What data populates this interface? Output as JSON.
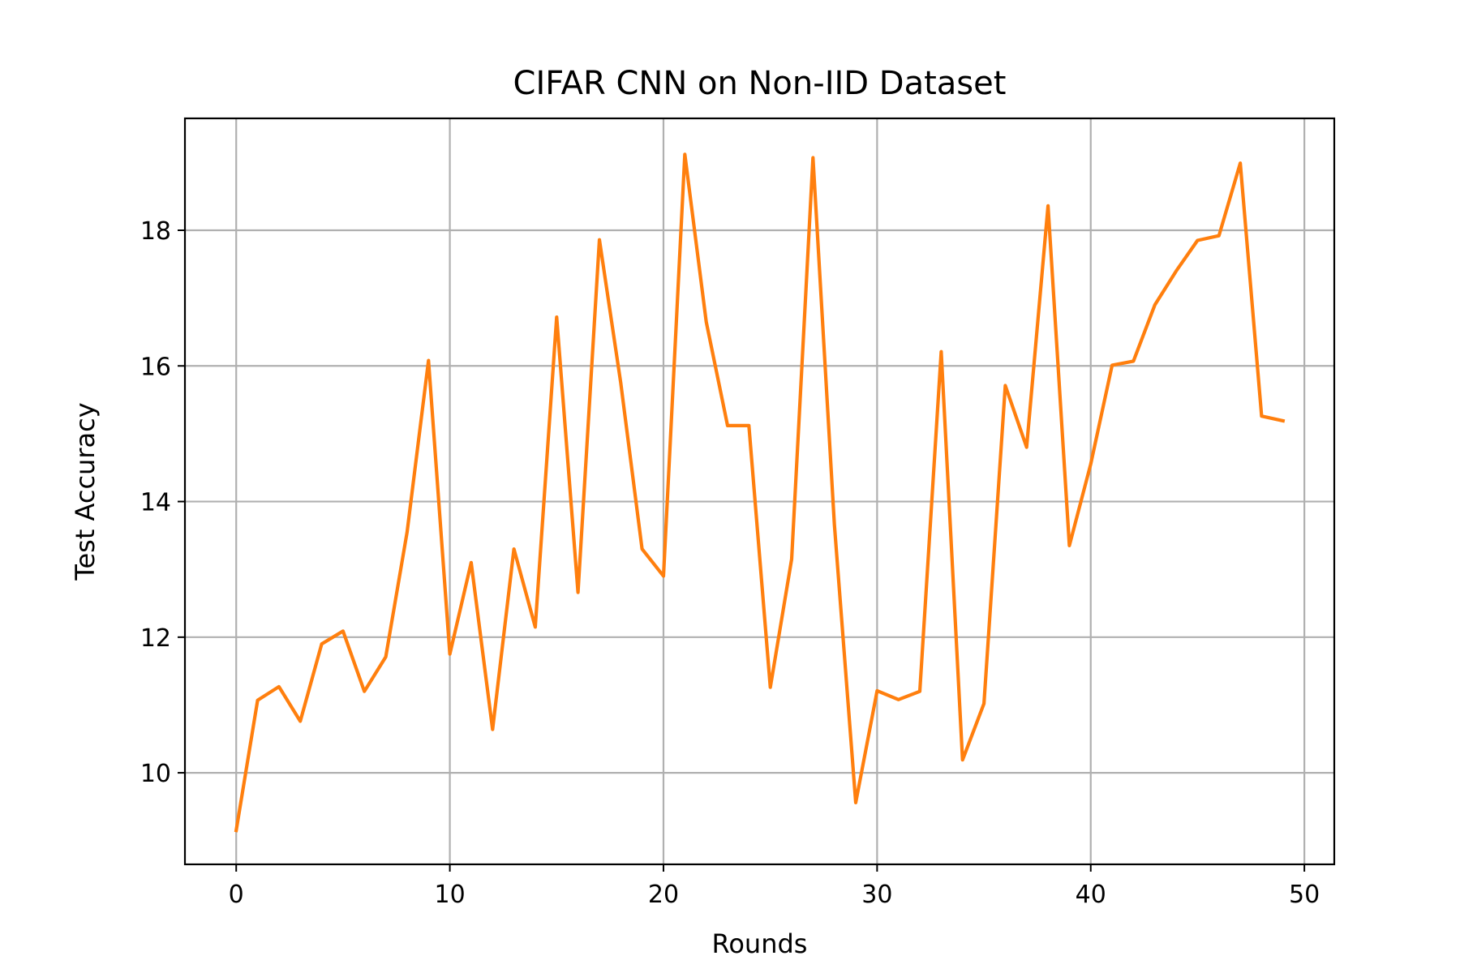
{
  "chart_data": {
    "type": "line",
    "title": "CIFAR CNN on Non-IID Dataset",
    "xlabel": "Rounds",
    "ylabel": "Test Accuracy",
    "xlim": [
      -2.4,
      51.4
    ],
    "ylim": [
      8.65,
      19.65
    ],
    "x_ticks": [
      0,
      10,
      20,
      30,
      40,
      50
    ],
    "y_ticks": [
      10,
      12,
      14,
      16,
      18
    ],
    "grid": true,
    "legend": "none",
    "colors": {
      "line": "#ff7f0e",
      "grid": "#b0b0b0",
      "frame": "#000000"
    },
    "series": [
      {
        "x": [
          0,
          1,
          2,
          3,
          4,
          5,
          6,
          7,
          8,
          9,
          10,
          11,
          12,
          13,
          14,
          15,
          16,
          17,
          18,
          19,
          20,
          21,
          22,
          23,
          24,
          25,
          26,
          27,
          28,
          29,
          30,
          31,
          32,
          33,
          34,
          35,
          36,
          37,
          38,
          39,
          40,
          41,
          42,
          43,
          44,
          45,
          46,
          47,
          48,
          49
        ],
        "values": [
          9.15,
          11.07,
          11.27,
          10.76,
          11.9,
          12.09,
          11.2,
          11.71,
          13.55,
          16.08,
          11.75,
          13.1,
          10.64,
          13.3,
          12.15,
          16.72,
          12.66,
          17.86,
          15.75,
          13.3,
          12.9,
          19.12,
          16.65,
          15.12,
          15.12,
          11.26,
          13.15,
          19.07,
          13.66,
          9.56,
          11.21,
          11.08,
          11.2,
          16.21,
          10.19,
          11.02,
          15.71,
          14.8,
          18.36,
          13.35,
          14.55,
          16.01,
          16.07,
          16.9,
          17.4,
          17.85,
          17.92,
          18.99,
          15.26,
          15.19
        ]
      }
    ]
  }
}
